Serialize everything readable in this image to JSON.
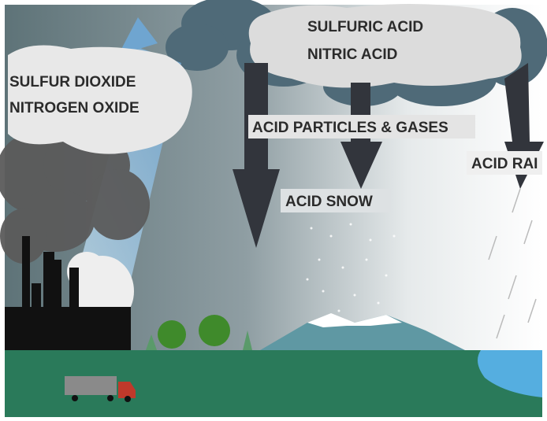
{
  "clouds": {
    "emissions": [
      "SULFUR DIOXIDE",
      "NITROGEN OXIDE"
    ],
    "acids": [
      "SULFURIC ACID",
      "NITRIC ACID"
    ]
  },
  "labels": {
    "particles": "ACID PARTICLES & GASES",
    "snow": "ACID SNOW",
    "rain": "ACID RAI"
  }
}
